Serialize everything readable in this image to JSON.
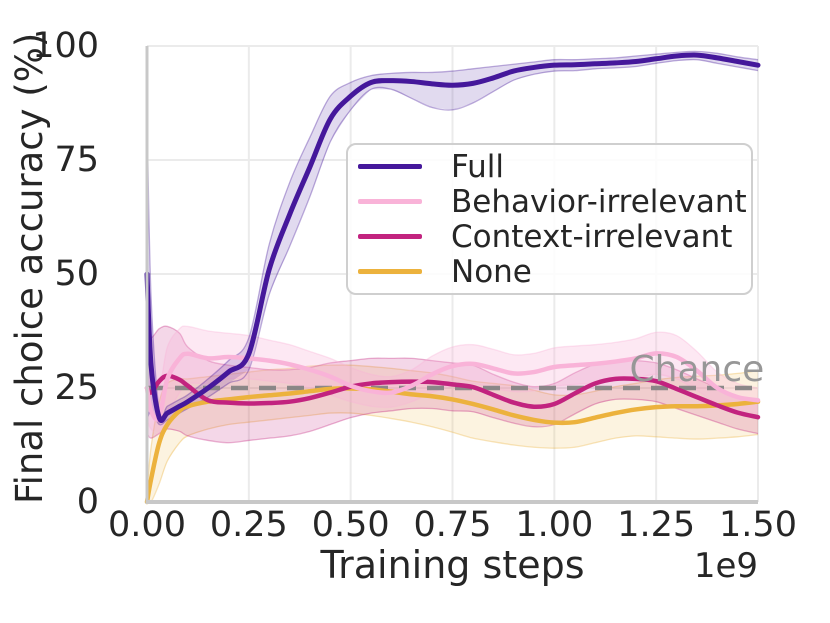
{
  "figure": {
    "background_color": "#ffffff",
    "text_color": "#262626",
    "grid_color": "#ebebeb",
    "spine_color": "#c8c8c8"
  },
  "chart_data": {
    "type": "line",
    "title": "",
    "xlabel": "Training steps",
    "ylabel": "Final choice accuracy (%)",
    "x_offset_label": "1e9",
    "xlim": [
      0,
      1.5
    ],
    "ylim": [
      0,
      100
    ],
    "grid": true,
    "legend_position": "center-right inside",
    "xtick_values": [
      0,
      0.25,
      0.5,
      0.75,
      1.0,
      1.25,
      1.5
    ],
    "xtick_labels": [
      "0.00",
      "0.25",
      "0.50",
      "0.75",
      "1.00",
      "1.25",
      "1.50"
    ],
    "ytick_values": [
      0,
      25,
      50,
      75,
      100
    ],
    "ytick_labels": [
      "0",
      "25",
      "50",
      "75",
      "100"
    ],
    "x": [
      0,
      0.01,
      0.03,
      0.05,
      0.08,
      0.1,
      0.15,
      0.2,
      0.25,
      0.3,
      0.35,
      0.4,
      0.45,
      0.5,
      0.55,
      0.6,
      0.65,
      0.7,
      0.75,
      0.8,
      0.85,
      0.9,
      0.95,
      1.0,
      1.05,
      1.1,
      1.15,
      1.2,
      1.25,
      1.3,
      1.35,
      1.4,
      1.45,
      1.5
    ],
    "series": [
      {
        "name": "Full",
        "color": "#45189b",
        "line_width": 5,
        "band_opacity": 0.16,
        "values": [
          50,
          30,
          18.5,
          19.5,
          21,
          22,
          25,
          28.5,
          32.5,
          51,
          63,
          73.5,
          84,
          89,
          92,
          92.4,
          92.2,
          91.7,
          91.4,
          91.8,
          93,
          94.5,
          95.3,
          95.8,
          95.9,
          96.1,
          96.3,
          96.6,
          97.2,
          97.8,
          98,
          97.4,
          96.6,
          95.8
        ],
        "band_lower": [
          18,
          20,
          17,
          18,
          19.5,
          20.5,
          23,
          26,
          29,
          45.5,
          56,
          67,
          79,
          86,
          90.5,
          90.5,
          88.5,
          86.5,
          86,
          87.5,
          90,
          92.5,
          93.8,
          94.5,
          94.6,
          95,
          95.2,
          95.5,
          96.2,
          96.8,
          97,
          96.2,
          95.4,
          94.6
        ],
        "band_upper": [
          85,
          45,
          20,
          21,
          22.5,
          23.5,
          27,
          31,
          36,
          56.5,
          70,
          80,
          89,
          92,
          93.5,
          94,
          94.2,
          94.2,
          94.5,
          95,
          95.5,
          96,
          96.5,
          97,
          97,
          97.2,
          97.4,
          97.8,
          98.2,
          98.6,
          98.8,
          98.4,
          97.6,
          97
        ]
      },
      {
        "name": "Behavior-irrelevant",
        "color": "#f9b3d8",
        "line_width": 4.5,
        "band_opacity": 0.3,
        "values": [
          25,
          20,
          18.5,
          27,
          31.5,
          32.5,
          31.5,
          31.8,
          31.5,
          31,
          30.2,
          29,
          27.5,
          25.5,
          24.3,
          24,
          25.5,
          28,
          29.8,
          30.3,
          29.3,
          28.2,
          28.5,
          29.6,
          30,
          30.3,
          30.8,
          31.5,
          32.6,
          31.8,
          28.8,
          25,
          23,
          22.3
        ],
        "band_lower": [
          18,
          16,
          15,
          19,
          24,
          26,
          26,
          27,
          27,
          26.5,
          26,
          25,
          23.5,
          22,
          21,
          20.8,
          22,
          24,
          25.5,
          26,
          25,
          24.2,
          24.4,
          25.4,
          25.8,
          26.1,
          26.6,
          27.2,
          28,
          27,
          24.5,
          21.5,
          20,
          19.5
        ],
        "band_upper": [
          38,
          30,
          25,
          34,
          38,
          38.5,
          37.5,
          37,
          36.5,
          35.5,
          34.5,
          33,
          31.5,
          29.5,
          28,
          27.5,
          29,
          32,
          34,
          34.5,
          33.5,
          32.3,
          32.6,
          33.8,
          34.2,
          34.5,
          35,
          35.8,
          37.2,
          36.5,
          33,
          28.5,
          26,
          25
        ]
      },
      {
        "name": "Context-irrelevant",
        "color": "#c2237f",
        "line_width": 4.5,
        "band_opacity": 0.18,
        "values": [
          25,
          24,
          26.5,
          27.7,
          26.8,
          25.5,
          22.3,
          21.8,
          21.6,
          21.7,
          22,
          22.8,
          24,
          25.3,
          26,
          26.3,
          26.4,
          26.3,
          25.8,
          25.2,
          23.5,
          21.8,
          20.9,
          21.5,
          23.8,
          26,
          27,
          27,
          26.5,
          24.8,
          23,
          21.2,
          19.6,
          18.6
        ],
        "band_lower": [
          15,
          14,
          15,
          16,
          15.5,
          14.5,
          13.5,
          13,
          13.5,
          14,
          14.5,
          15.5,
          17,
          18.5,
          19.5,
          20,
          20.5,
          20.5,
          20,
          19.8,
          18.5,
          17.3,
          16.5,
          17,
          19.3,
          21.5,
          22.5,
          22.5,
          22,
          20.5,
          19,
          17.5,
          16,
          15
        ],
        "band_upper": [
          38,
          36,
          38,
          38.5,
          37,
          34,
          31,
          30,
          29.5,
          29,
          29,
          29.5,
          30.5,
          31,
          31.5,
          31.5,
          31.5,
          31,
          30.5,
          30,
          28,
          26.3,
          25.3,
          26,
          28.3,
          30.2,
          31,
          31,
          30.5,
          29,
          27,
          25,
          23.2,
          22.2
        ]
      },
      {
        "name": "None",
        "color": "#ecb23d",
        "line_width": 4.5,
        "band_opacity": 0.16,
        "values": [
          0,
          5,
          13,
          17,
          20,
          21,
          22,
          22.5,
          23,
          23.4,
          23.8,
          24.3,
          24.8,
          24.9,
          24.7,
          24.2,
          23.6,
          23.2,
          22.5,
          21.5,
          20.3,
          19,
          18,
          17.4,
          17.5,
          18.5,
          19.5,
          20.3,
          20.8,
          21,
          21,
          21.2,
          21.5,
          22
        ],
        "band_lower": [
          0,
          0,
          4,
          9,
          13,
          14.5,
          16,
          17,
          17.5,
          18,
          18.5,
          19,
          19.5,
          19.5,
          19,
          18.3,
          17.5,
          16.5,
          15.3,
          14,
          13.2,
          12.5,
          12,
          11.8,
          12,
          13,
          14,
          14.5,
          14.3,
          14,
          13.8,
          14,
          14.3,
          14.8
        ],
        "band_upper": [
          2,
          12,
          22,
          26,
          27,
          27,
          27.5,
          28,
          28.5,
          29,
          29.3,
          29.8,
          30,
          30,
          29.7,
          29.3,
          28.8,
          28.3,
          27.5,
          26.5,
          26,
          25.5,
          24.5,
          23.5,
          23.5,
          24.3,
          25.3,
          26,
          26.8,
          27.3,
          27.6,
          27.8,
          28.2,
          28.8
        ]
      }
    ],
    "reference_line": {
      "label": "Chance",
      "value": 25,
      "color": "#808080",
      "style": "dashed",
      "label_color": "#979797",
      "label_x": 1.35
    }
  }
}
